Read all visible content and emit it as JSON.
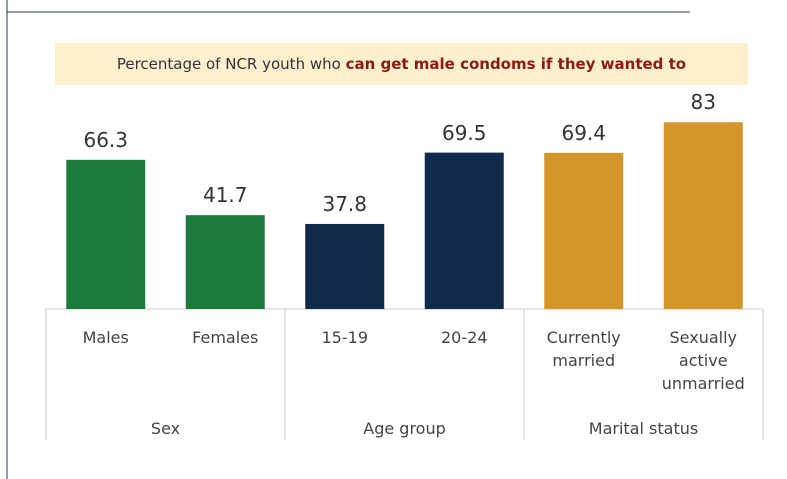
{
  "chart_data": {
    "type": "bar",
    "title": "Percentage of NCR youth who ",
    "title_emphasis": "can get male condoms if they wanted to",
    "ylim": [
      0,
      100
    ],
    "groups": [
      {
        "name": "Sex",
        "color": "#1b7a3e",
        "categories": [
          "Males",
          "Females"
        ],
        "values": [
          66.3,
          41.7
        ]
      },
      {
        "name": "Age group",
        "color": "#0f2a4a",
        "categories": [
          "15-19",
          "20-24"
        ],
        "values": [
          37.8,
          69.5
        ]
      },
      {
        "name": "Marital status",
        "color": "#d4952b",
        "categories": [
          "Currently married",
          "Sexually active unmarried"
        ],
        "values": [
          69.4,
          83.0
        ]
      }
    ]
  }
}
